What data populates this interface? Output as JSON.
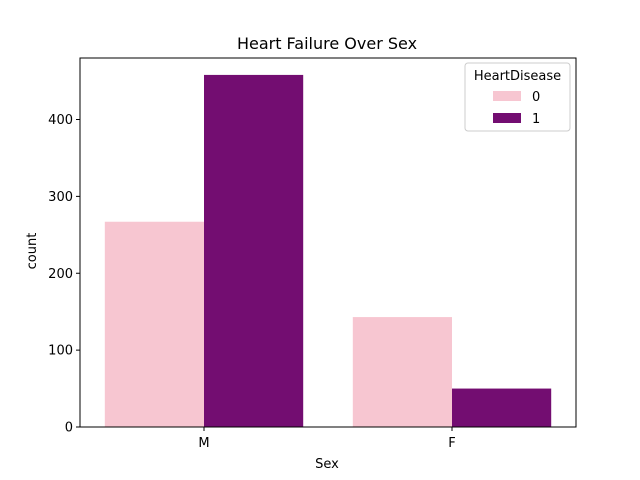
{
  "chart_data": {
    "type": "bar",
    "title": "Heart Failure Over Sex",
    "xlabel": "Sex",
    "ylabel": "count",
    "categories": [
      "M",
      "F"
    ],
    "ylim": [
      0,
      480
    ],
    "yticks": [
      0,
      100,
      200,
      300,
      400
    ],
    "grid": false,
    "legend": {
      "title": "HeartDisease",
      "placement": "top-right"
    },
    "series": [
      {
        "name": "0",
        "color": "#f7c6d1",
        "values": [
          267,
          143
        ]
      },
      {
        "name": "1",
        "color": "#730d71",
        "values": [
          458,
          50
        ]
      }
    ]
  }
}
